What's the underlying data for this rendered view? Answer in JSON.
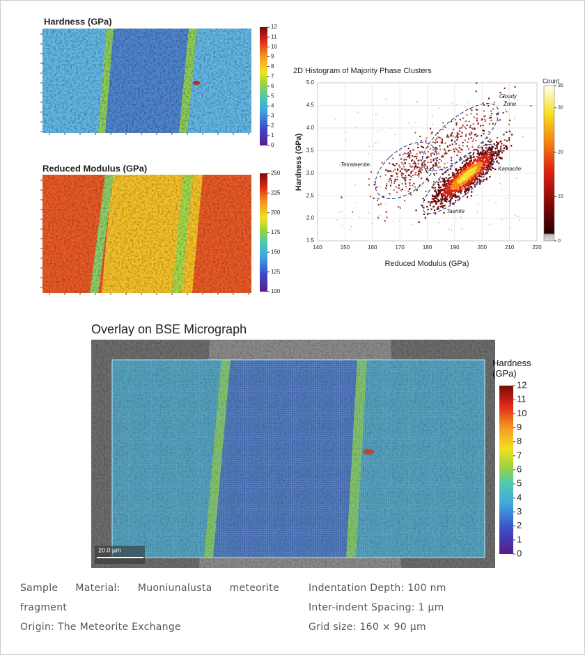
{
  "figure": {
    "hardness_map": {
      "title": "Hardness (GPa)",
      "colorbar_ticks": [
        12,
        11,
        10,
        9,
        8,
        7,
        6,
        5,
        4,
        3,
        2,
        1,
        0
      ]
    },
    "modulus_map": {
      "title": "Reduced Modulus (GPa)",
      "colorbar_ticks": [
        250,
        225,
        200,
        175,
        150,
        125,
        100
      ]
    },
    "histogram": {
      "title": "2D Histogram of Majority Phase Clusters",
      "x_label": "Reduced Modulus (GPa)",
      "y_label": "Hardness (GPa)",
      "x_ticks": [
        140,
        150,
        160,
        170,
        180,
        190,
        200,
        210,
        220
      ],
      "y_ticks": [
        "1.5",
        "2.0",
        "2.5",
        "3.0",
        "3.5",
        "4.0",
        "4.5",
        "5.0"
      ],
      "colorbar_title": "Count",
      "colorbar_ticks": [
        35,
        30,
        20,
        10,
        0
      ],
      "annotations": {
        "cloudy_zone": [
          "Cloudy",
          "Zone"
        ],
        "tetrataenite": "Tetrataenite",
        "kamacite": "Kamacite",
        "taenite": "Taenite"
      }
    },
    "overlay": {
      "title": "Overlay on BSE Micrograph",
      "colorbar_title": "Hardness (GPa)",
      "colorbar_ticks": [
        12,
        11,
        10,
        9,
        8,
        7,
        6,
        5,
        4,
        3,
        2,
        1,
        0
      ],
      "scale_bar": "20.0 µm"
    }
  },
  "caption": {
    "left": [
      "Sample Material: Muoniunalusta meteorite fragment",
      "Origin: The Meteorite Exchange"
    ],
    "right": [
      "Indentation Depth: 100 nm",
      "Inter-indent Spacing: 1 µm",
      "Grid size: 160 × 90 µm"
    ]
  }
}
